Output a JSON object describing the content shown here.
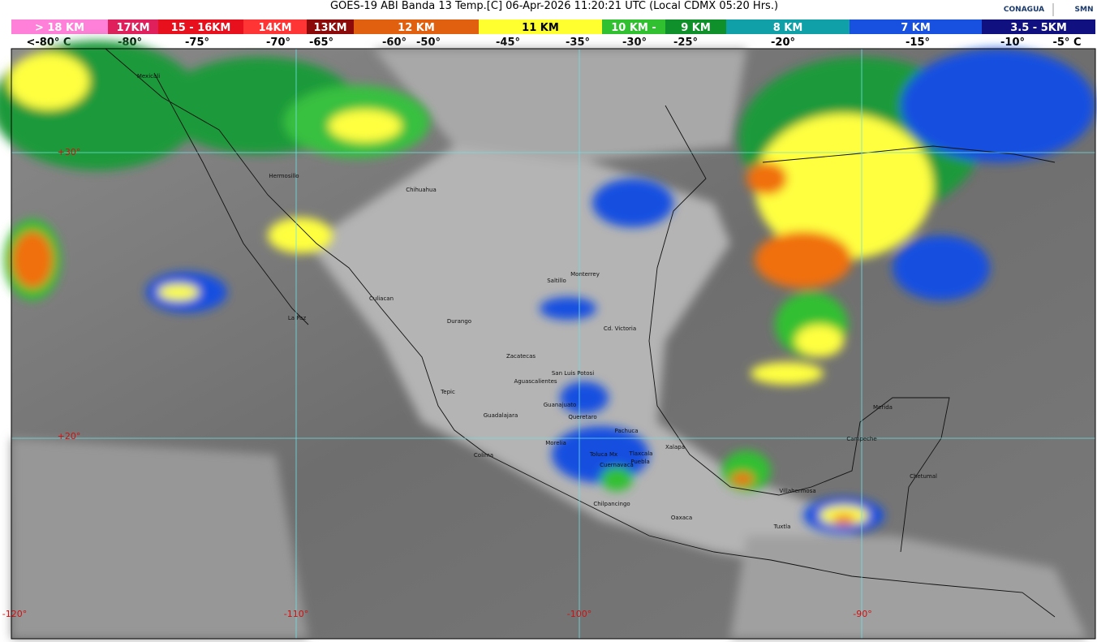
{
  "header": {
    "title": "GOES-19 ABI Banda 13 Temp.[C] 06-Apr-2026 11:20:21 UTC (Local CDMX  05:20 Hrs.)",
    "logos": [
      "CONAGUA",
      "SMN"
    ]
  },
  "legend": {
    "bands": [
      {
        "label": "> 18 KM",
        "color": "#ff80d8"
      },
      {
        "label": "17KM",
        "color": "#e0205c"
      },
      {
        "label": "15 - 16KM",
        "color": "#e8101c"
      },
      {
        "label": "14KM",
        "color": "#ff3434"
      },
      {
        "label": "13KM",
        "color": "#8c0a0a"
      },
      {
        "label": "12 KM",
        "color": "#e06010"
      },
      {
        "label": "11 KM",
        "color": "#ffff30"
      },
      {
        "label": "10 KM -",
        "color": "#30c030"
      },
      {
        "label": "9 KM",
        "color": "#10902a"
      },
      {
        "label": "8 KM",
        "color": "#10a0a8"
      },
      {
        "label": "7 KM",
        "color": "#1850e0"
      },
      {
        "label": "3.5 - 5KM",
        "color": "#101080"
      }
    ],
    "temps": [
      "<-80° C",
      "-80°",
      "-75°",
      "-70°",
      "-65°",
      "-60°",
      "-50°",
      "-45°",
      "-35°",
      "-30°",
      "-25°",
      "-20°",
      "-15°",
      "-10°",
      "-5° C"
    ]
  },
  "map": {
    "grid_labels": [
      "+30°",
      "+20°",
      "-120°",
      "-110°",
      "-100°",
      "-90°"
    ],
    "cities": [
      "Mexicali",
      "Hermosillo",
      "Chihuahua",
      "Culiacan",
      "Durango",
      "La Paz",
      "Saltillo",
      "Monterrey",
      "Cd. Victoria",
      "Zacatecas",
      "San Luis Potosi",
      "Aguascalientes",
      "Tepic",
      "Guanajuato",
      "Guadalajara",
      "Queretaro",
      "Pachuca",
      "Morelia",
      "Xalapa",
      "Toluca Mx",
      "Tlaxcala",
      "Puebla",
      "Cuernavaca",
      "Colima",
      "Chilpancingo",
      "Oaxaca",
      "Villahermosa",
      "Tuxtla",
      "Merida",
      "Campeche",
      "Chetumal"
    ]
  }
}
